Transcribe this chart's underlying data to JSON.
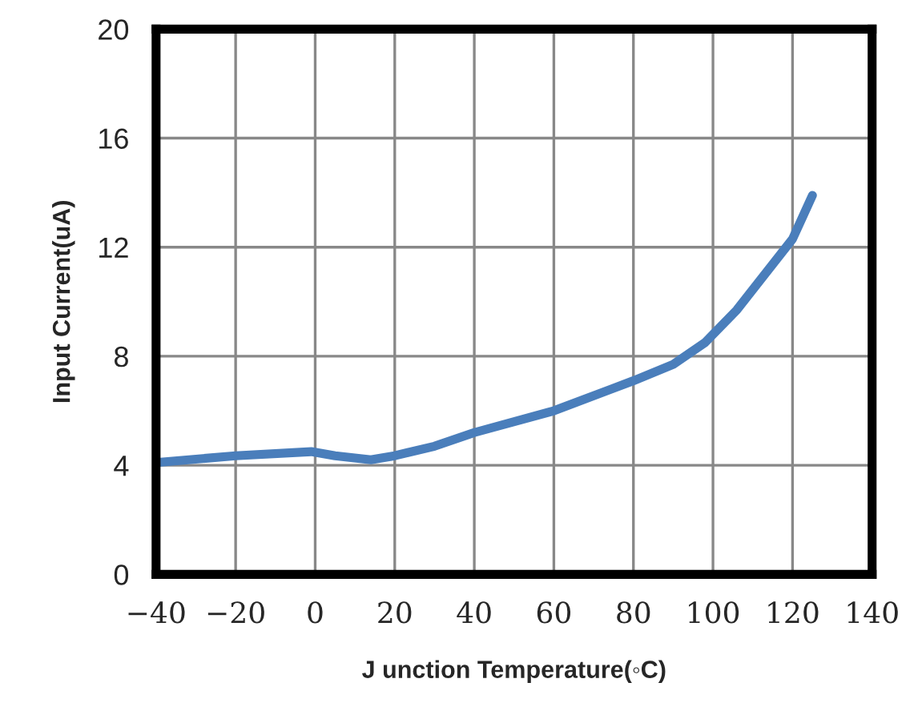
{
  "chart_data": {
    "type": "line",
    "xlabel": "J unction Temperature(◦C)",
    "ylabel": "Input Current(uA)",
    "x": [
      -40,
      -20,
      -1,
      5,
      14,
      20,
      30,
      40,
      60,
      80,
      90,
      98,
      106,
      120,
      125
    ],
    "series": [
      {
        "color": "#4a7ebb",
        "values": [
          4.1,
          4.35,
          4.5,
          4.35,
          4.2,
          4.35,
          4.7,
          5.2,
          6.0,
          7.1,
          7.7,
          8.5,
          9.7,
          12.3,
          13.9
        ]
      }
    ],
    "xlim": [
      -40,
      140
    ],
    "xticks": [
      {
        "value": -40,
        "label": "−40"
      },
      {
        "value": -20,
        "label": "−20"
      },
      0,
      20,
      40,
      60,
      80,
      100,
      120,
      140
    ],
    "ylim": [
      0,
      20
    ],
    "yticks": [
      0,
      4,
      8,
      12,
      16,
      20
    ],
    "grid": true,
    "line_style": "solid",
    "marker": "none"
  }
}
